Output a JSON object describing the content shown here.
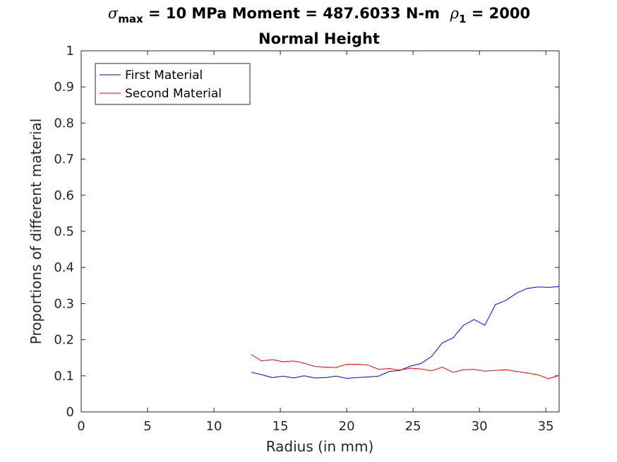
{
  "chart_data": {
    "type": "line",
    "title": {
      "line1": {
        "sigma_symbol": "σ",
        "sigma_sub": "max",
        "text1": " = 10 MPa Moment = 487.6033 N-m  ",
        "rho_symbol": "ρ",
        "rho_sub": "1",
        "text2": " = 2000"
      },
      "line2": "Normal Height"
    },
    "xlabel": "Radius (in mm)",
    "ylabel": "Proportions of different material",
    "xlim": [
      0,
      36
    ],
    "ylim": [
      0,
      1
    ],
    "xticks": [
      0,
      5,
      10,
      15,
      20,
      25,
      30,
      35
    ],
    "yticks": [
      0,
      0.1,
      0.2,
      0.3,
      0.4,
      0.5,
      0.6,
      0.7,
      0.8,
      0.9,
      1
    ],
    "ytick_labels": [
      "0",
      "0.1",
      "0.2",
      "0.3",
      "0.4",
      "0.5",
      "0.6",
      "0.7",
      "0.8",
      "0.9",
      "1"
    ],
    "xtick_labels": [
      "0",
      "5",
      "10",
      "15",
      "20",
      "25",
      "30",
      "35"
    ],
    "grid": false,
    "legend_position": "top-left",
    "series": [
      {
        "name": "First Material",
        "color": "#0000ff",
        "x": [
          12.8,
          13.6,
          14.4,
          15.2,
          16.0,
          16.8,
          17.6,
          18.4,
          19.2,
          20.0,
          20.8,
          21.6,
          22.4,
          23.2,
          24.0,
          24.8,
          25.6,
          26.4,
          27.2,
          28.0,
          28.8,
          29.6,
          30.4,
          31.2,
          32.0,
          32.8,
          33.6,
          34.4,
          35.2,
          36.0
        ],
        "y": [
          0.11,
          0.103,
          0.095,
          0.099,
          0.094,
          0.1,
          0.094,
          0.095,
          0.099,
          0.093,
          0.095,
          0.097,
          0.099,
          0.112,
          0.115,
          0.127,
          0.134,
          0.154,
          0.191,
          0.205,
          0.24,
          0.256,
          0.24,
          0.297,
          0.309,
          0.329,
          0.342,
          0.346,
          0.345,
          0.347
        ]
      },
      {
        "name": "Second Material",
        "color": "#ff0000",
        "x": [
          12.8,
          13.6,
          14.4,
          15.2,
          16.0,
          16.8,
          17.6,
          18.4,
          19.2,
          20.0,
          20.8,
          21.6,
          22.4,
          23.2,
          24.0,
          24.8,
          25.6,
          26.4,
          27.2,
          28.0,
          28.8,
          29.6,
          30.4,
          31.2,
          32.0,
          32.8,
          33.6,
          34.4,
          35.2,
          36.0
        ],
        "y": [
          0.159,
          0.141,
          0.145,
          0.139,
          0.141,
          0.135,
          0.126,
          0.124,
          0.123,
          0.132,
          0.132,
          0.13,
          0.118,
          0.12,
          0.116,
          0.121,
          0.119,
          0.114,
          0.124,
          0.11,
          0.117,
          0.118,
          0.113,
          0.115,
          0.117,
          0.112,
          0.108,
          0.103,
          0.092,
          0.101
        ]
      }
    ]
  }
}
